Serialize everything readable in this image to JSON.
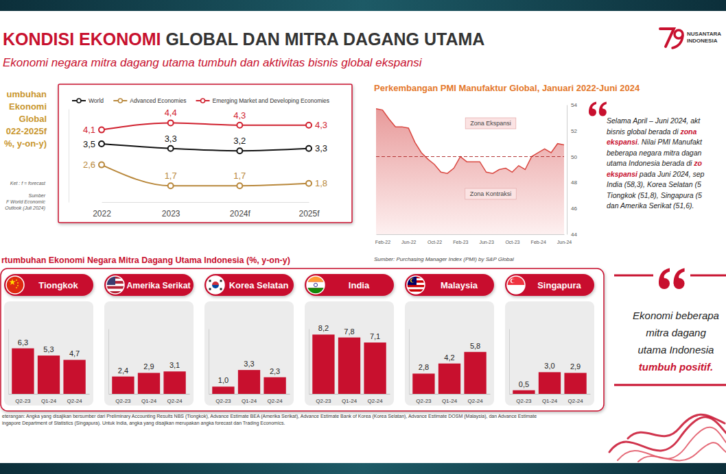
{
  "header": {
    "title_highlight": "KONDISI EKONOMI",
    "title_rest": "GLOBAL DAN MITRA DAGANG UTAMA",
    "subtitle": "Ekonomi negara mitra dagang utama tumbuh dan aktivitas bisnis global ekspansi",
    "logo": [
      "NUSANTARA",
      "INDONESIA"
    ]
  },
  "chart_data": [
    {
      "type": "line",
      "title_lines": [
        "umbuhan",
        "Ekonomi",
        "Global",
        "022-2025f",
        "%, y-on-y)"
      ],
      "notes": [
        "Ket : f = forecast"
      ],
      "source_lines": [
        "Sumber",
        "F World Economic",
        "Outlook (Juli 2024)"
      ],
      "categories": [
        "2022",
        "2023",
        "2024f",
        "2025f"
      ],
      "series": [
        {
          "name": "World",
          "color": "#111111",
          "values": [
            3.5,
            3.3,
            3.2,
            3.3
          ],
          "value_labels": [
            "3,5",
            "3,3",
            "3,2",
            "3,3"
          ]
        },
        {
          "name": "Advanced Economies",
          "color": "#b8873a",
          "values": [
            2.6,
            1.7,
            1.7,
            1.8
          ],
          "value_labels": [
            "2,6",
            "1,7",
            "1,7",
            "1,8"
          ]
        },
        {
          "name": "Emerging Market and Developing Economies",
          "color": "#d0202e",
          "values": [
            4.1,
            4.4,
            4.3,
            4.3
          ],
          "value_labels": [
            "4,1",
            "4,4",
            "4,3",
            "4,3"
          ]
        }
      ],
      "ylim": [
        1,
        5
      ],
      "tick_labels": "x",
      "data_labels": true,
      "legend": "top",
      "marker": "circle",
      "grid": false
    },
    {
      "type": "area",
      "title": "Perkembangan PMI Manufaktur Global, Januari 2022-Juni 2024",
      "source": "Sumber: Purchasing Manager Index (PMI) by S&P Global",
      "categories": [
        null,
        "Feb-22",
        null,
        null,
        null,
        "Jun-22",
        null,
        null,
        null,
        "Oct-22",
        null,
        null,
        null,
        "Feb-23",
        null,
        null,
        null,
        "Jun-23",
        null,
        null,
        null,
        "Oct-23",
        null,
        null,
        null,
        "Feb-24",
        null,
        null,
        null,
        "Jun-24"
      ],
      "values": [
        53.7,
        53.6,
        52.9,
        52.3,
        52.3,
        52.2,
        51.1,
        50.3,
        49.8,
        49.4,
        48.8,
        48.7,
        49.1,
        50.0,
        49.6,
        49.6,
        49.6,
        48.8,
        48.7,
        49.0,
        49.1,
        48.8,
        49.3,
        49.0,
        50.0,
        50.3,
        50.6,
        50.3,
        51.0,
        50.9
      ],
      "color": "#d9463f",
      "ylim": [
        44,
        54
      ],
      "yticks": [
        44,
        46,
        48,
        50,
        52,
        54
      ],
      "reference_line": 50,
      "annotations": [
        "Zona Ekspansi",
        "Zona Kontraksi"
      ],
      "grid": false
    },
    {
      "type": "bar",
      "title": "Tiongkok",
      "categories": [
        "Q2-23",
        "Q1-24",
        "Q2-24"
      ],
      "values": [
        6.3,
        5.3,
        4.7
      ],
      "value_labels": [
        "6,3",
        "5,3",
        "4,7"
      ],
      "color": "#c8102e",
      "ylim": [
        0,
        9
      ],
      "tick_labels": "x",
      "data_labels": true
    },
    {
      "type": "bar",
      "title": "Amerika Serikat",
      "categories": [
        "Q2-23",
        "Q1-24",
        "Q2-24"
      ],
      "values": [
        2.4,
        2.9,
        3.1
      ],
      "value_labels": [
        "2,4",
        "2,9",
        "3,1"
      ],
      "color": "#c8102e",
      "ylim": [
        0,
        9
      ],
      "tick_labels": "x",
      "data_labels": true
    },
    {
      "type": "bar",
      "title": "Korea Selatan",
      "categories": [
        "Q2-23",
        "Q1-24",
        "Q2-24"
      ],
      "values": [
        1.0,
        3.3,
        2.3
      ],
      "value_labels": [
        "1,0",
        "3,3",
        "2,3"
      ],
      "color": "#c8102e",
      "ylim": [
        0,
        9
      ],
      "tick_labels": "x",
      "data_labels": true
    },
    {
      "type": "bar",
      "title": "India",
      "categories": [
        "Q2-23",
        "Q1-24",
        "Q2-24"
      ],
      "values": [
        8.2,
        7.8,
        7.1
      ],
      "value_labels": [
        "8,2",
        "7,8",
        "7,1"
      ],
      "color": "#c8102e",
      "ylim": [
        0,
        9
      ],
      "tick_labels": "x",
      "data_labels": true
    },
    {
      "type": "bar",
      "title": "Malaysia",
      "categories": [
        "Q2-23",
        "Q1-24",
        "Q2-24"
      ],
      "values": [
        2.8,
        4.2,
        5.8
      ],
      "value_labels": [
        "2,8",
        "4,2",
        "5,8"
      ],
      "color": "#c8102e",
      "ylim": [
        0,
        9
      ],
      "tick_labels": "x",
      "data_labels": true
    },
    {
      "type": "bar",
      "title": "Singapura",
      "categories": [
        "Q2-23",
        "Q1-24",
        "Q2-24"
      ],
      "values": [
        0.5,
        3.0,
        2.9
      ],
      "value_labels": [
        "0,5",
        "3,0",
        "2,9"
      ],
      "color": "#c8102e",
      "ylim": [
        0,
        9
      ],
      "tick_labels": "x",
      "data_labels": true
    }
  ],
  "pmi_commentary": {
    "lines": [
      [
        {
          "text": "Selama April – Juni 2024, akt"
        }
      ],
      [
        {
          "text": "bisnis global berada di "
        },
        {
          "text": "zona",
          "emphasis": true
        }
      ],
      [
        {
          "text": "ekspansi",
          "emphasis": true
        },
        {
          "text": ". Nilai PMI Manufakt"
        }
      ],
      [
        {
          "text": "beberapa negara mitra dagan"
        }
      ],
      [
        {
          "text": "utama Indonesia berada di "
        },
        {
          "text": "zo",
          "emphasis": true
        }
      ],
      [
        {
          "text": "ekspansi",
          "emphasis": true
        },
        {
          "text": " pada Juni 2024, sep"
        }
      ],
      [
        {
          "text": "India (58,3), Korea Selatan (5"
        }
      ],
      [
        {
          "text": "Tiongkok (51,8), Singapura (5"
        }
      ],
      [
        {
          "text": "dan Amerika Serikat (51,6)."
        }
      ]
    ]
  },
  "partner_growth": {
    "title": "rtumbuhan Ekonomi Negara Mitra Dagang Utama Indonesia (%, y-on-y)",
    "note_lines": [
      "eterangan: Angka yang disajikan bersumber dari Preliminary Accounting Results NBS (Tiongkok), Advance Estimate BEA (Amerika Serikat), Advance Estimate Bank of Korea (Korea Selatan), Advance Estimate DOSM (Malaysia), dan Advance Estimate",
      "ingapore Department of Statistics (Singapura). Untuk India, angka yang disajikan merupakan angka forecast dan Trading Economics."
    ]
  },
  "growth_quote": {
    "lines": [
      [
        {
          "text": "Ekonomi beberapa"
        }
      ],
      [
        {
          "text": "mitra dagang"
        }
      ],
      [
        {
          "text": "utama Indonesia"
        }
      ],
      [
        {
          "text": "tumbuh positif.",
          "emphasis": true
        }
      ]
    ]
  }
}
